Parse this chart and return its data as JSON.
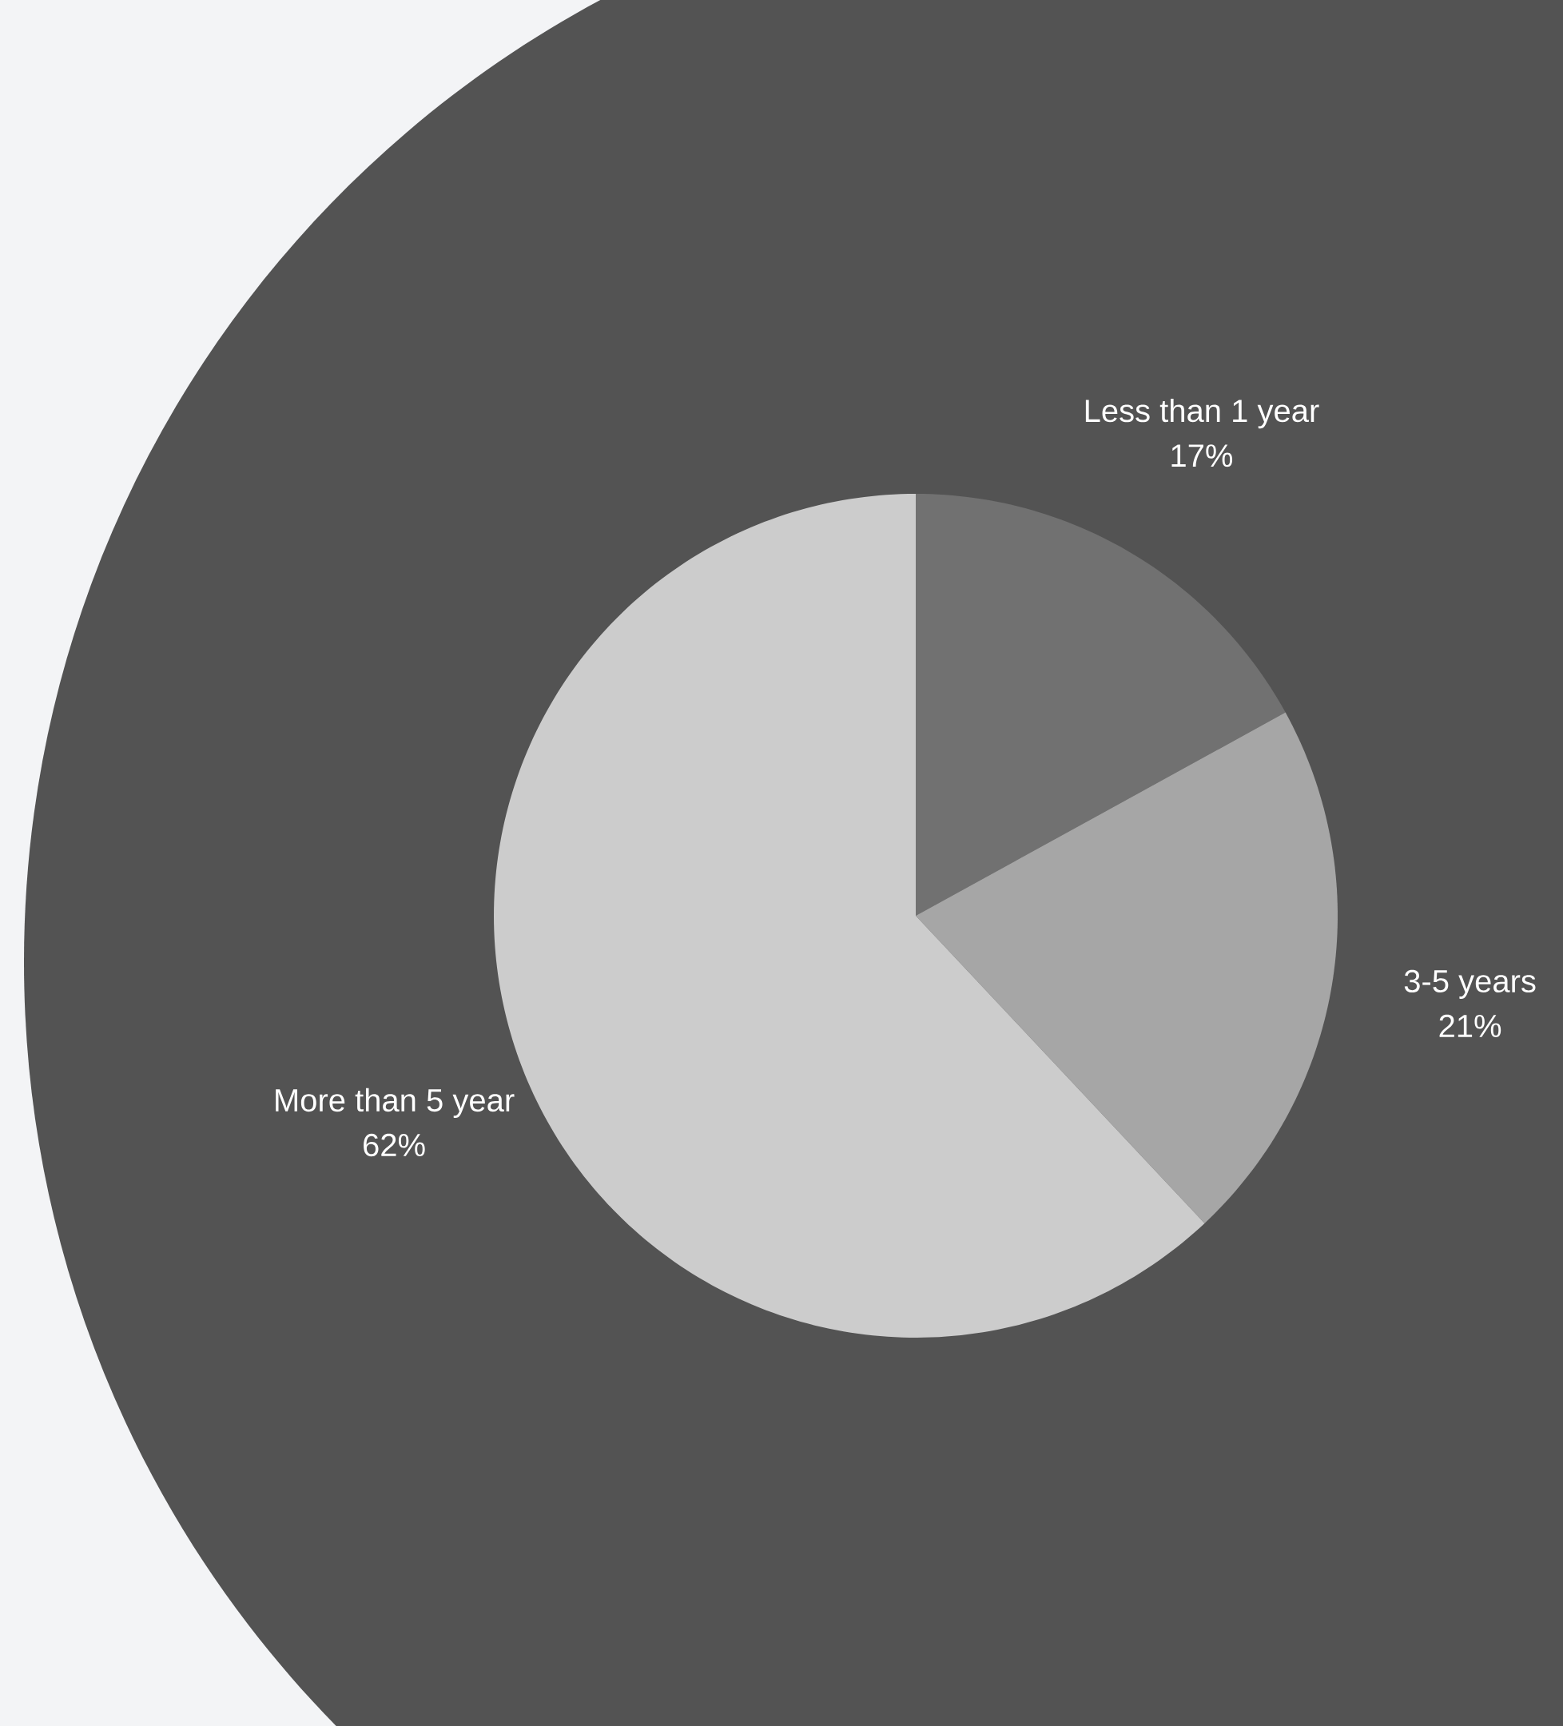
{
  "chart_data": {
    "type": "pie",
    "categories": [
      "Less than 1 year",
      "3-5 years",
      "More than 5 year"
    ],
    "values": [
      17,
      21,
      62
    ],
    "value_labels": [
      "17%",
      "21%",
      "62%"
    ],
    "colors": [
      "#717171",
      "#a6a6a6",
      "#cccccc"
    ]
  }
}
